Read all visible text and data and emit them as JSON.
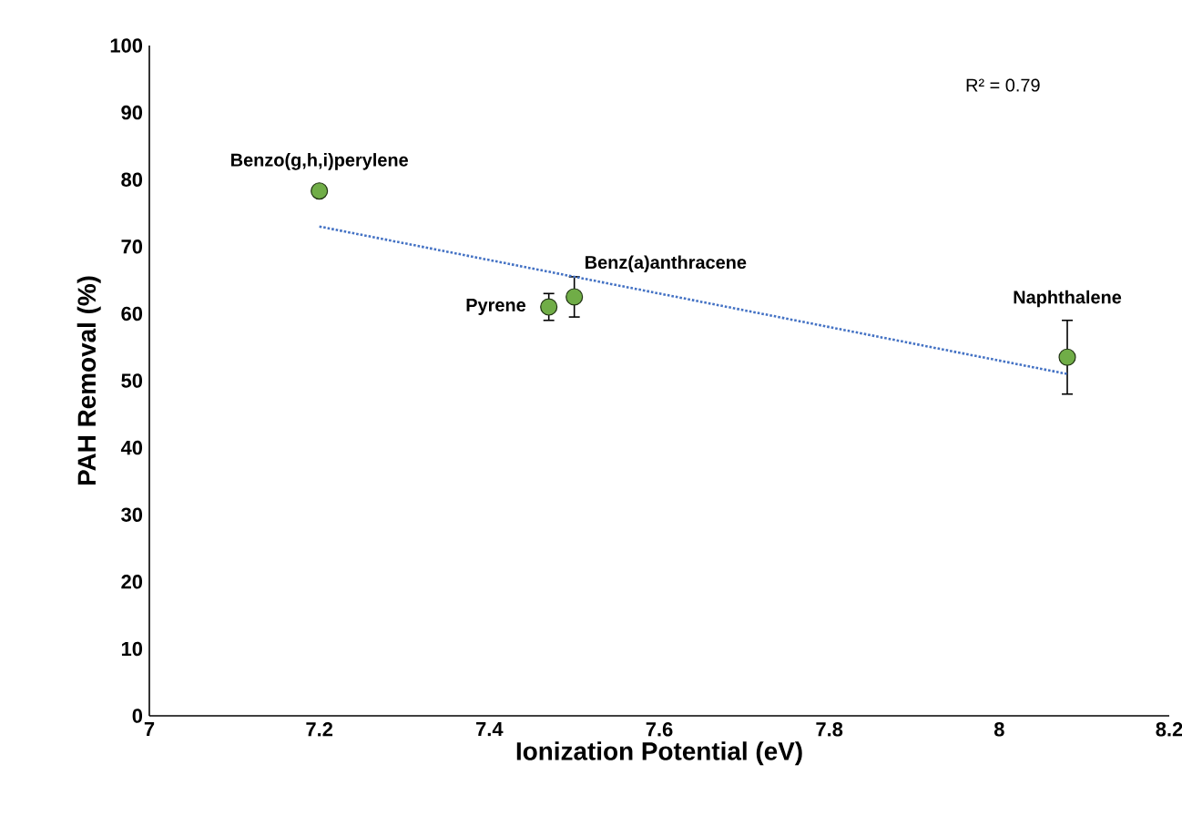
{
  "chart_data": {
    "type": "scatter",
    "xlabel": "Ionization Potential (eV)",
    "ylabel": "PAH Removal (%)",
    "xlim": [
      7,
      8.2
    ],
    "ylim": [
      0,
      100
    ],
    "xticks": [
      7,
      7.2,
      7.4,
      7.6,
      7.8,
      8,
      8.2
    ],
    "yticks": [
      0,
      10,
      20,
      30,
      40,
      50,
      60,
      70,
      80,
      90,
      100
    ],
    "series": [
      {
        "marker": "circle",
        "color": "#70ad47",
        "x": [
          7.2,
          7.47,
          7.5,
          8.08
        ],
        "values": [
          78.3,
          61,
          62.5,
          53.5
        ],
        "errors": [
          null,
          2,
          3,
          5.5
        ]
      },
      {
        "type": "line",
        "color": "#4472c4",
        "line_style": "dotted",
        "marker": "none",
        "x": [
          7.2,
          8.08
        ],
        "values": [
          73,
          51
        ]
      }
    ],
    "annotations": [
      "R² = 0.79",
      {
        "text": "Benzo(g,h,i)perylene",
        "x": 7.2,
        "y": 78.3
      },
      {
        "text": "Pyrene",
        "x": 7.47,
        "y": 61
      },
      {
        "text": "Benz(a)anthracene",
        "x": 7.5,
        "y": 62.5
      },
      {
        "text": "Naphthalene",
        "x": 8.08,
        "y": 53.5
      }
    ]
  }
}
